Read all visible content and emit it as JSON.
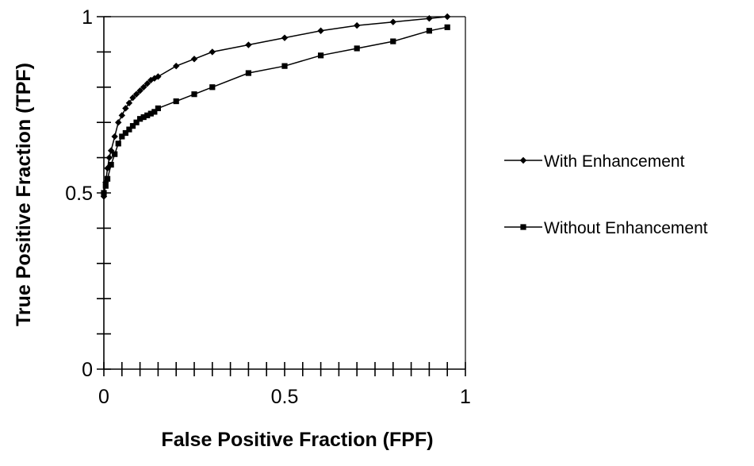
{
  "chart_data": {
    "type": "line",
    "xlabel": "False Positive Fraction (FPF)",
    "ylabel": "True Positive Fraction (TPF)",
    "xlim": [
      0,
      1
    ],
    "ylim": [
      0,
      1
    ],
    "x_ticks": [
      0,
      0.5,
      1
    ],
    "y_ticks": [
      0,
      0.5,
      1
    ],
    "x_tick_labels": [
      "0",
      "0.5",
      "1"
    ],
    "y_tick_labels": [
      "0",
      "0.5",
      "1"
    ],
    "x_minor_step": 0.05,
    "y_minor_step": 0.1,
    "grid": false,
    "legend_position": "right",
    "series": [
      {
        "name": "With Enhancement",
        "marker": "diamond",
        "color": "#000000",
        "x": [
          0,
          0.005,
          0.01,
          0.015,
          0.02,
          0.03,
          0.04,
          0.05,
          0.06,
          0.07,
          0.08,
          0.09,
          0.1,
          0.11,
          0.12,
          0.13,
          0.14,
          0.15,
          0.2,
          0.25,
          0.3,
          0.4,
          0.5,
          0.6,
          0.7,
          0.8,
          0.9,
          0.95
        ],
        "y": [
          0.49,
          0.53,
          0.57,
          0.6,
          0.62,
          0.66,
          0.7,
          0.72,
          0.74,
          0.755,
          0.77,
          0.78,
          0.79,
          0.8,
          0.81,
          0.82,
          0.825,
          0.83,
          0.86,
          0.88,
          0.9,
          0.92,
          0.94,
          0.96,
          0.975,
          0.985,
          0.995,
          1.0
        ]
      },
      {
        "name": "Without Enhancement",
        "marker": "square",
        "color": "#000000",
        "x": [
          0,
          0.005,
          0.01,
          0.02,
          0.03,
          0.04,
          0.05,
          0.06,
          0.07,
          0.08,
          0.09,
          0.1,
          0.11,
          0.12,
          0.13,
          0.14,
          0.15,
          0.2,
          0.25,
          0.3,
          0.4,
          0.5,
          0.6,
          0.7,
          0.8,
          0.9,
          0.95
        ],
        "y": [
          0.5,
          0.52,
          0.54,
          0.58,
          0.61,
          0.64,
          0.66,
          0.67,
          0.68,
          0.69,
          0.7,
          0.71,
          0.715,
          0.72,
          0.725,
          0.73,
          0.74,
          0.76,
          0.78,
          0.8,
          0.84,
          0.86,
          0.89,
          0.91,
          0.93,
          0.96,
          0.97
        ]
      }
    ]
  }
}
